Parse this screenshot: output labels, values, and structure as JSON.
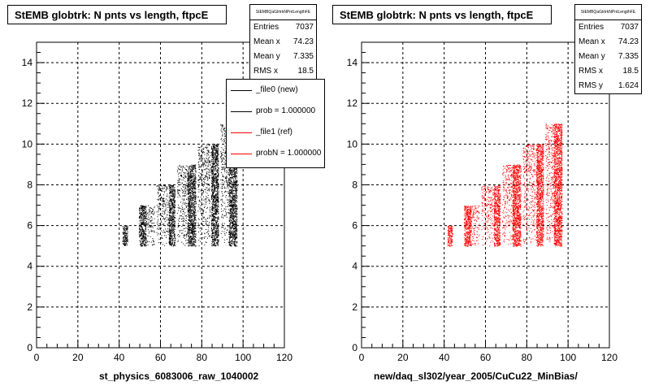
{
  "chart_data": [
    {
      "type": "scatter",
      "title": "StEMB globtrk: N pnts vs length, ftpcE",
      "xlabel": "st_physics_6083006_raw_1040002",
      "ylabel": "",
      "xlim": [
        0,
        120
      ],
      "ylim": [
        0,
        15
      ],
      "xticks": [
        0,
        20,
        40,
        60,
        80,
        100,
        120
      ],
      "yticks": [
        0,
        2,
        4,
        6,
        8,
        10,
        12,
        14
      ],
      "grid": true,
      "color": "#000000",
      "stats": {
        "name": "StEMBQaGlrtrkNPntLengthFE",
        "rows": [
          {
            "label": "Entries",
            "value": "7037"
          },
          {
            "label": "Mean x",
            "value": "74.23"
          },
          {
            "label": "Mean y",
            "value": "7.335"
          },
          {
            "label": "RMS x",
            "value": "18.5"
          }
        ]
      },
      "legend": {
        "placement": "right",
        "entries": [
          {
            "label": "_file0 (new)",
            "color": "#000000"
          },
          {
            "label": "prob = 1.000000",
            "color": "#000000"
          },
          {
            "label": "_file1 (ref)",
            "color": "#ff0000"
          },
          {
            "label": "probN = 1.000000",
            "color": "#ff0000"
          }
        ]
      },
      "clusters": [
        {
          "x_range": [
            41.5,
            44
          ],
          "y_range": [
            5,
            6
          ],
          "density": "dense"
        },
        {
          "x_range": [
            49.5,
            53
          ],
          "y_range": [
            5,
            7
          ],
          "density": "dense"
        },
        {
          "x_range": [
            53,
            57
          ],
          "y_range": [
            5,
            7
          ],
          "density": "sparse"
        },
        {
          "x_range": [
            58,
            64
          ],
          "y_range": [
            5,
            8
          ],
          "density": "sparse"
        },
        {
          "x_range": [
            64,
            67
          ],
          "y_range": [
            5,
            8
          ],
          "density": "dense"
        },
        {
          "x_range": [
            68,
            73
          ],
          "y_range": [
            5,
            9
          ],
          "density": "sparse"
        },
        {
          "x_range": [
            73,
            77
          ],
          "y_range": [
            5,
            9
          ],
          "density": "dense"
        },
        {
          "x_range": [
            78,
            84
          ],
          "y_range": [
            5,
            10
          ],
          "density": "sparse"
        },
        {
          "x_range": [
            84.5,
            88
          ],
          "y_range": [
            5,
            10
          ],
          "density": "dense"
        },
        {
          "x_range": [
            89,
            93
          ],
          "y_range": [
            5,
            11
          ],
          "density": "sparse"
        },
        {
          "x_range": [
            93,
            97
          ],
          "y_range": [
            5,
            11
          ],
          "density": "dense"
        }
      ]
    },
    {
      "type": "scatter",
      "title": "StEMB globtrk: N pnts vs length, ftpcE",
      "xlabel": "new/daq_sl302/year_2005/CuCu22_MinBias/",
      "ylabel": "",
      "xlim": [
        0,
        120
      ],
      "ylim": [
        0,
        15
      ],
      "xticks": [
        0,
        20,
        40,
        60,
        80,
        100,
        120
      ],
      "yticks": [
        0,
        2,
        4,
        6,
        8,
        10,
        12,
        14
      ],
      "grid": true,
      "color": "#ff0000",
      "stats": {
        "name": "StEMBQaGlrtrkNPntLengthFE",
        "rows": [
          {
            "label": "Entries",
            "value": "7037"
          },
          {
            "label": "Mean x",
            "value": "74.23"
          },
          {
            "label": "Mean y",
            "value": "7.335"
          },
          {
            "label": "RMS x",
            "value": "18.5"
          },
          {
            "label": "RMS y",
            "value": "1.624"
          }
        ]
      },
      "clusters": [
        {
          "x_range": [
            41.5,
            44
          ],
          "y_range": [
            5,
            6
          ],
          "density": "dense"
        },
        {
          "x_range": [
            49.5,
            53
          ],
          "y_range": [
            5,
            7
          ],
          "density": "dense"
        },
        {
          "x_range": [
            53,
            57
          ],
          "y_range": [
            5,
            7
          ],
          "density": "sparse"
        },
        {
          "x_range": [
            58,
            64
          ],
          "y_range": [
            5,
            8
          ],
          "density": "sparse"
        },
        {
          "x_range": [
            64,
            67
          ],
          "y_range": [
            5,
            8
          ],
          "density": "dense"
        },
        {
          "x_range": [
            68,
            73
          ],
          "y_range": [
            5,
            9
          ],
          "density": "sparse"
        },
        {
          "x_range": [
            73,
            77
          ],
          "y_range": [
            5,
            9
          ],
          "density": "dense"
        },
        {
          "x_range": [
            78,
            84
          ],
          "y_range": [
            5,
            10
          ],
          "density": "sparse"
        },
        {
          "x_range": [
            84.5,
            88
          ],
          "y_range": [
            5,
            10
          ],
          "density": "dense"
        },
        {
          "x_range": [
            89,
            93
          ],
          "y_range": [
            5,
            11
          ],
          "density": "sparse"
        },
        {
          "x_range": [
            93,
            97
          ],
          "y_range": [
            5,
            11
          ],
          "density": "dense"
        }
      ]
    }
  ]
}
